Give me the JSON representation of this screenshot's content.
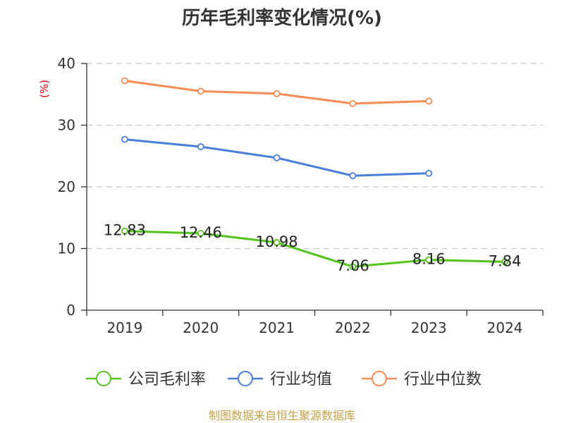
{
  "chart_data": {
    "type": "line",
    "title": "历年毛利率变化情况(%)",
    "ylabel": "(%)",
    "xlabel": "",
    "ylim": [
      0,
      40
    ],
    "yticks": [
      0,
      10,
      20,
      30,
      40
    ],
    "grid": true,
    "legend_position": "bottom",
    "categories": [
      "2019",
      "2020",
      "2021",
      "2022",
      "2023",
      "2024"
    ],
    "series": [
      {
        "name": "公司毛利率",
        "color": "#52c41a",
        "values": [
          12.83,
          12.46,
          10.98,
          7.06,
          8.16,
          7.84
        ],
        "labels": [
          "12.83",
          "12.46",
          "10.98",
          "7.06",
          "8.16",
          "7.84"
        ]
      },
      {
        "name": "行业均值",
        "color": "#4a7fd9",
        "values": [
          27.7,
          26.5,
          24.7,
          21.8,
          22.2,
          null
        ]
      },
      {
        "name": "行业中位数",
        "color": "#f98b54",
        "values": [
          37.2,
          35.5,
          35.1,
          33.5,
          33.9,
          null
        ]
      }
    ],
    "source": "制图数据来自恒生聚源数据库"
  }
}
